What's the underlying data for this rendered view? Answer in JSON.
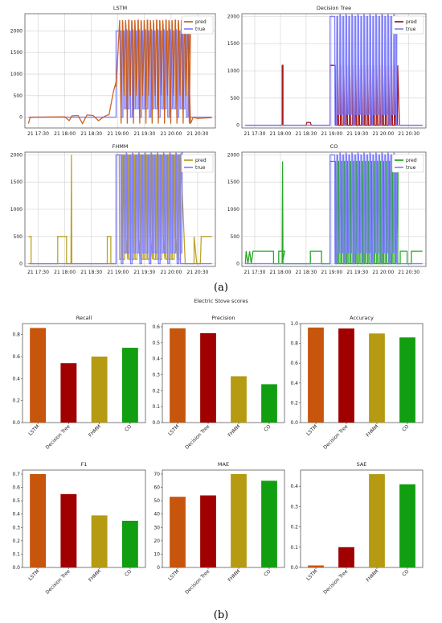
{
  "figure": {
    "caption_a": "(a)",
    "caption_b": "(b)",
    "section_b_title": "Electric Stove scores"
  },
  "colors": {
    "lstm": "#c8550c",
    "decision_tree": "#a00000",
    "fhmm": "#b59a12",
    "co": "#119e11",
    "true": "#7b7bff",
    "grid": "#d0d0d0"
  },
  "time_ticks": [
    "21 17:30",
    "21 18:00",
    "21 18:30",
    "21 19:00",
    "21 19:30",
    "21 20:00",
    "21 20:30"
  ],
  "chart_data": [
    {
      "type": "line",
      "title": "LSTM",
      "legend": [
        "pred",
        "true"
      ],
      "legend_position": "top-right",
      "ylim": [
        -250,
        2400
      ],
      "yticks": [
        0,
        500,
        1000,
        1500,
        2000
      ],
      "grid": true,
      "x_start": "21 17:15",
      "x_end": "21 20:50",
      "true_on_segment": [
        "21 18:58",
        "21 20:20"
      ],
      "true_on_level": 2000,
      "pred_peak_level": 2250,
      "pred_dip_level": -150
    },
    {
      "type": "line",
      "title": "Decision Tree",
      "legend": [
        "pred",
        "true"
      ],
      "legend_position": "top-right",
      "ylim": [
        -50,
        2050
      ],
      "yticks": [
        0,
        500,
        1000,
        1500,
        2000
      ],
      "grid": true,
      "x_start": "21 17:15",
      "x_end": "21 20:50",
      "true_on_segment": [
        "21 18:58",
        "21 20:15"
      ],
      "true_on_level": 2000,
      "pred_on_level": 1100,
      "pred_spike_time": "21 18:03",
      "pred_spike_level": 1100
    },
    {
      "type": "line",
      "title": "FHMM",
      "legend": [
        "pred",
        "true"
      ],
      "legend_position": "top-right",
      "ylim": [
        -50,
        2050
      ],
      "yticks": [
        0,
        500,
        1000,
        1500,
        2000
      ],
      "grid": true,
      "x_start": "21 17:15",
      "x_end": "21 20:50",
      "true_on_segment": [
        "21 18:58",
        "21 20:10"
      ],
      "true_on_level": 2000,
      "pred_spike_time": "21 18:08",
      "pred_spike_level": 2000,
      "pred_low_level": 500
    },
    {
      "type": "line",
      "title": "CO",
      "legend": [
        "pred",
        "true"
      ],
      "legend_position": "top-right",
      "ylim": [
        -50,
        2050
      ],
      "yticks": [
        0,
        500,
        1000,
        1500,
        2000
      ],
      "grid": true,
      "x_start": "21 17:15",
      "x_end": "21 20:50",
      "true_on_segment": [
        "21 18:58",
        "21 20:15"
      ],
      "true_on_level": 2000,
      "pred_spike_time": "21 18:03",
      "pred_spike_level": 1880,
      "pred_low_level": 230
    },
    {
      "type": "bar",
      "title": "Recall",
      "categories": [
        "LSTM",
        "Decision Tree",
        "FHMM",
        "CO"
      ],
      "values": [
        0.86,
        0.54,
        0.6,
        0.68
      ],
      "ylim": [
        0,
        0.9
      ],
      "yticks": [
        "0.0",
        "0.2",
        "0.4",
        "0.6",
        "0.8"
      ]
    },
    {
      "type": "bar",
      "title": "Precision",
      "categories": [
        "LSTM",
        "Decision Tree",
        "FHMM",
        "CO"
      ],
      "values": [
        0.59,
        0.56,
        0.29,
        0.24
      ],
      "ylim": [
        0,
        0.62
      ],
      "yticks": [
        "0.0",
        "0.1",
        "0.2",
        "0.3",
        "0.4",
        "0.5",
        "0.6"
      ]
    },
    {
      "type": "bar",
      "title": "Accuracy",
      "categories": [
        "LSTM",
        "Decision Tree",
        "FHMM",
        "CO"
      ],
      "values": [
        0.96,
        0.95,
        0.9,
        0.86
      ],
      "ylim": [
        0,
        1.0
      ],
      "yticks": [
        "0.0",
        "0.2",
        "0.4",
        "0.6",
        "0.8",
        "1.0"
      ]
    },
    {
      "type": "bar",
      "title": "F1",
      "categories": [
        "LSTM",
        "Decision Tree",
        "FHMM",
        "CO"
      ],
      "values": [
        0.7,
        0.55,
        0.39,
        0.35
      ],
      "ylim": [
        0,
        0.73
      ],
      "yticks": [
        "0.0",
        "0.1",
        "0.2",
        "0.3",
        "0.4",
        "0.5",
        "0.6",
        "0.7"
      ]
    },
    {
      "type": "bar",
      "title": "MAE",
      "categories": [
        "LSTM",
        "Decision Tree",
        "FHMM",
        "CO"
      ],
      "values": [
        53,
        54,
        70,
        65
      ],
      "ylim": [
        0,
        73
      ],
      "yticks": [
        "0",
        "10",
        "20",
        "30",
        "40",
        "50",
        "60",
        "70"
      ]
    },
    {
      "type": "bar",
      "title": "SAE",
      "categories": [
        "LSTM",
        "Decision Tree",
        "FHMM",
        "CO"
      ],
      "values": [
        0.01,
        0.1,
        0.46,
        0.41
      ],
      "ylim": [
        0,
        0.48
      ],
      "yticks": [
        "0.0",
        "0.1",
        "0.2",
        "0.3",
        "0.4"
      ]
    }
  ]
}
